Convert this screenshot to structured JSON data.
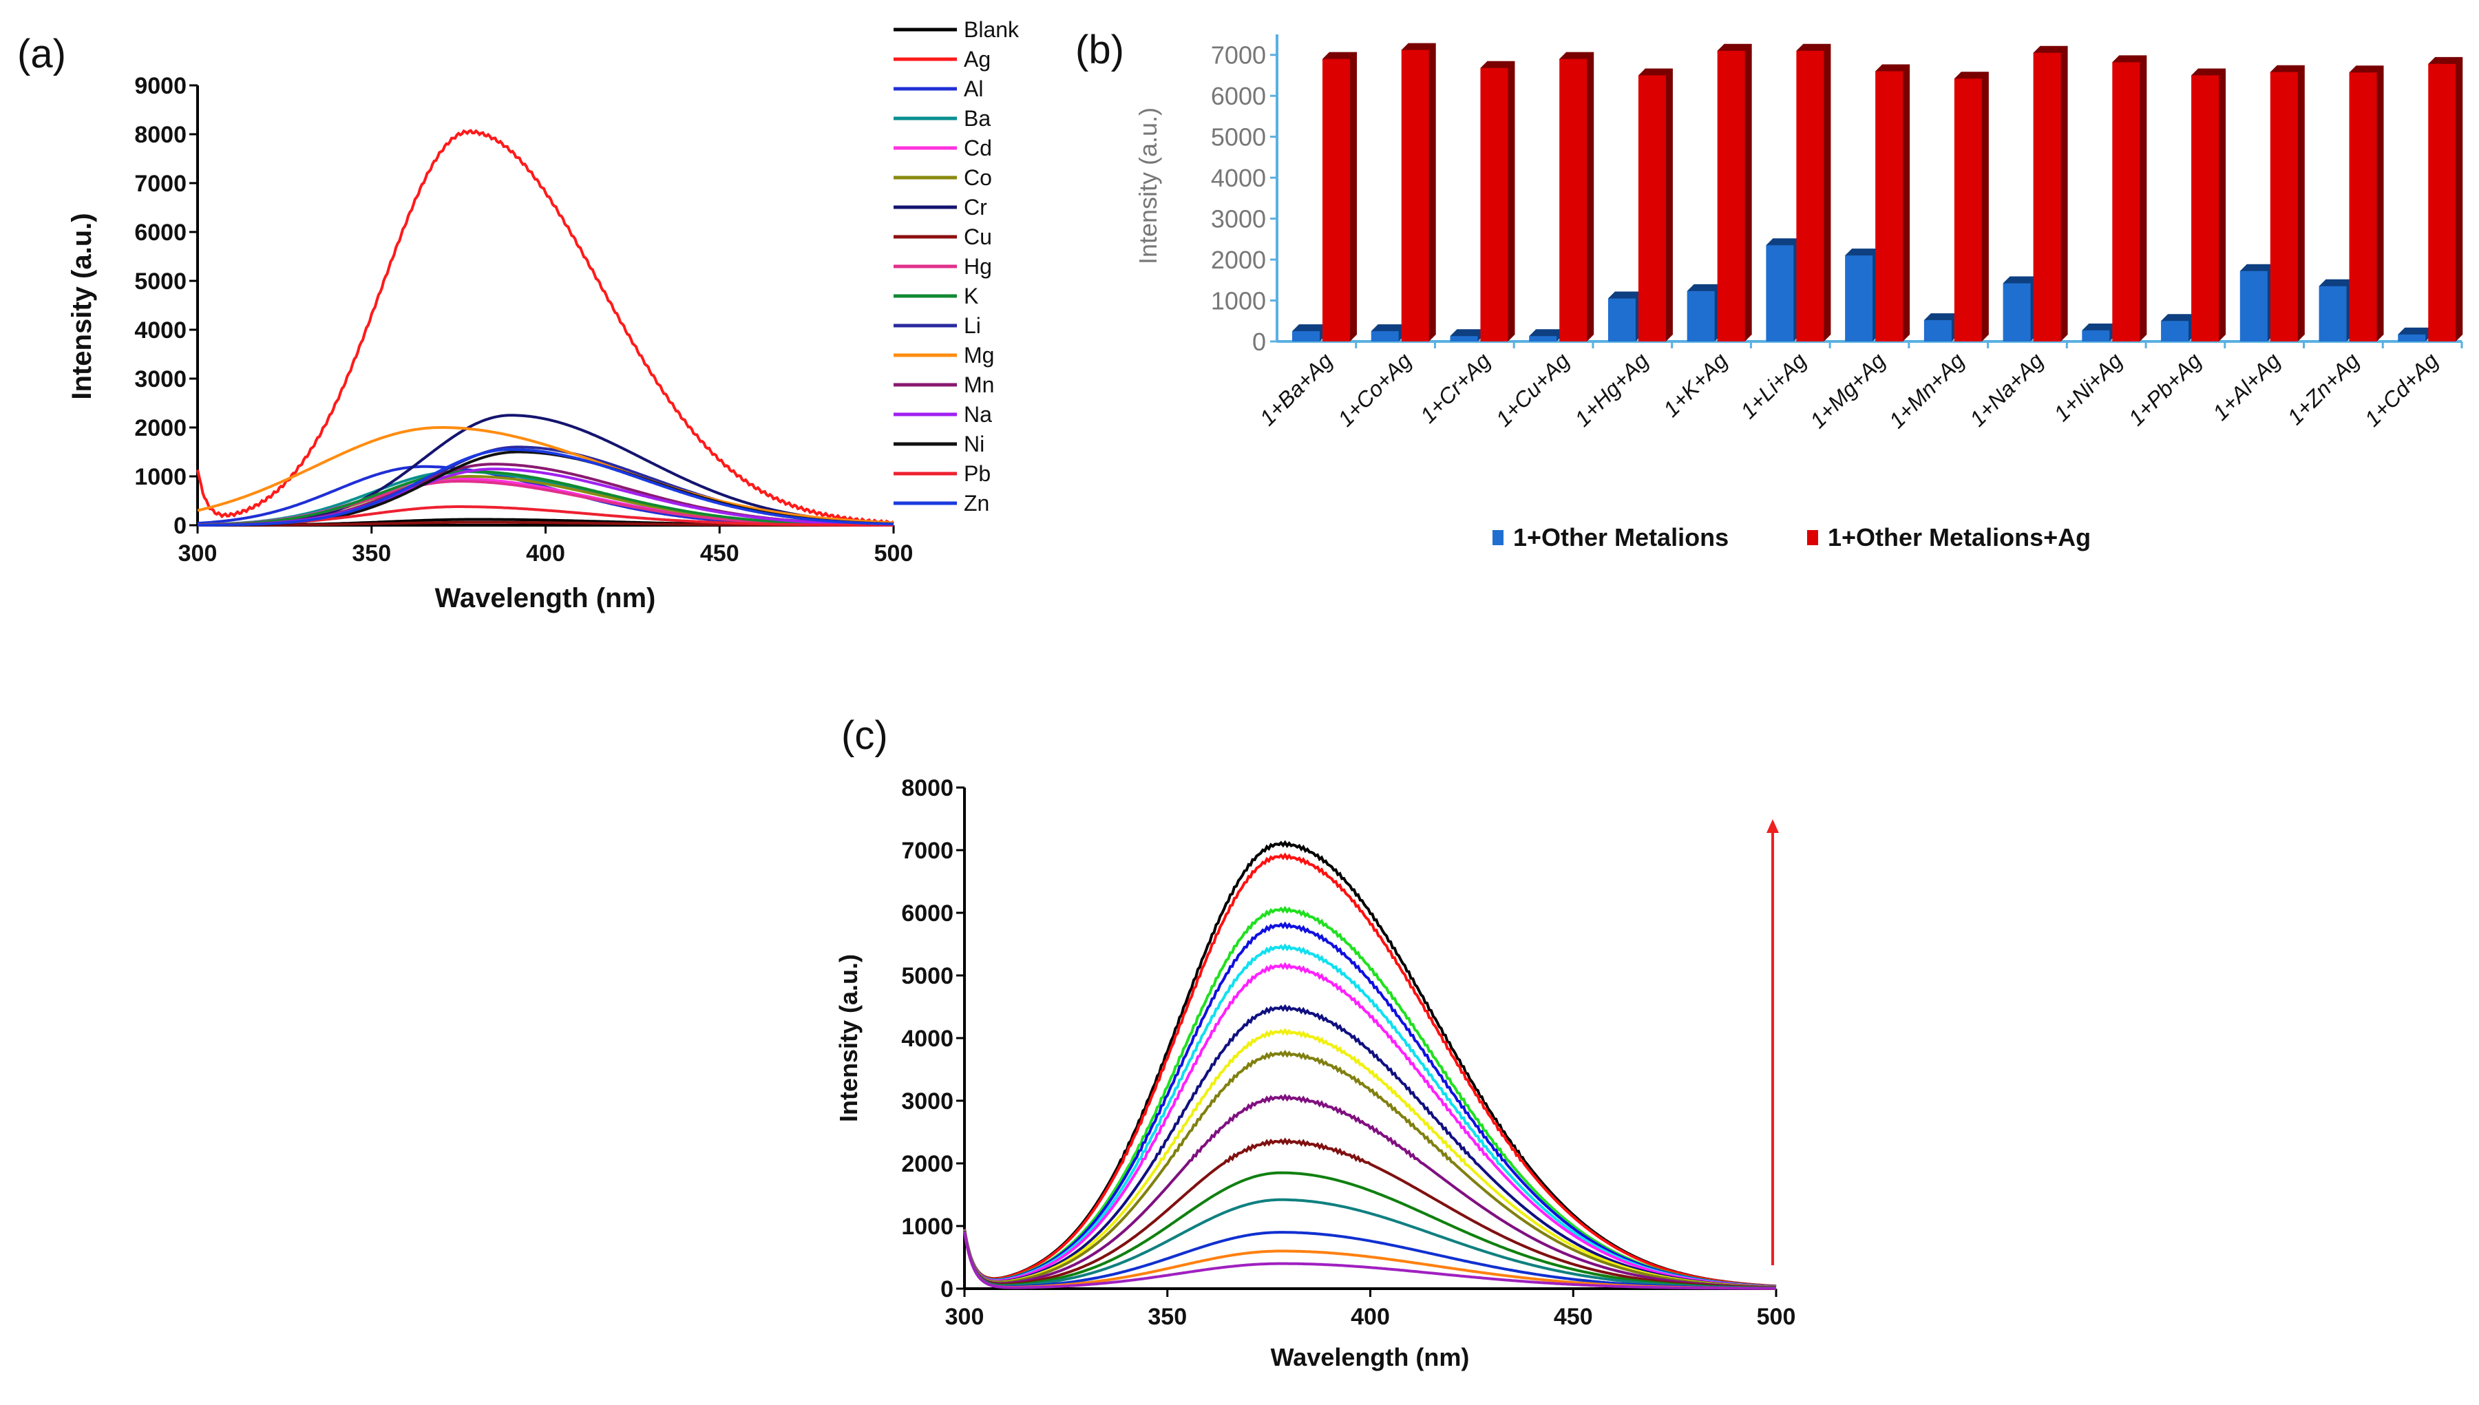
{
  "chart_data": [
    {
      "panel": "(a)",
      "type": "line",
      "xlabel": "Wavelength (nm)",
      "ylabel": "Intensity (a.u.)",
      "xlim": [
        300,
        500
      ],
      "ylim": [
        0,
        9000
      ],
      "xticks": [
        "300",
        "350",
        "400",
        "450",
        "500"
      ],
      "yticks": [
        "0",
        "1000",
        "2000",
        "3000",
        "4000",
        "5000",
        "6000",
        "7000",
        "8000",
        "9000"
      ],
      "legend_position": "right",
      "series": [
        {
          "name": "Blank",
          "color": "#000000",
          "peak_nm": 380,
          "peak_intensity": 120
        },
        {
          "name": "Ag",
          "color": "#ff1a1a",
          "peak_nm": 378,
          "peak_intensity": 8050
        },
        {
          "name": "Al",
          "color": "#1f2fd6",
          "peak_nm": 365,
          "peak_intensity": 1200
        },
        {
          "name": "Ba",
          "color": "#0a9090",
          "peak_nm": 375,
          "peak_intensity": 1100
        },
        {
          "name": "Cd",
          "color": "#ff33dd",
          "peak_nm": 375,
          "peak_intensity": 950
        },
        {
          "name": "Co",
          "color": "#8a8a10",
          "peak_nm": 378,
          "peak_intensity": 1000
        },
        {
          "name": "Cr",
          "color": "#141470",
          "peak_nm": 390,
          "peak_intensity": 2250
        },
        {
          "name": "Cu",
          "color": "#8b1010",
          "peak_nm": 380,
          "peak_intensity": 60
        },
        {
          "name": "Hg",
          "color": "#e0308a",
          "peak_nm": 375,
          "peak_intensity": 900
        },
        {
          "name": "K",
          "color": "#108a30",
          "peak_nm": 378,
          "peak_intensity": 1100
        },
        {
          "name": "Li",
          "color": "#2a2aa0",
          "peak_nm": 392,
          "peak_intensity": 1600
        },
        {
          "name": "Mg",
          "color": "#ff8c10",
          "peak_nm": 370,
          "peak_intensity": 2000
        },
        {
          "name": "Mn",
          "color": "#8a1a70",
          "peak_nm": 385,
          "peak_intensity": 1250
        },
        {
          "name": "Na",
          "color": "#a020f0",
          "peak_nm": 385,
          "peak_intensity": 1150
        },
        {
          "name": "Ni",
          "color": "#111111",
          "peak_nm": 392,
          "peak_intensity": 1500
        },
        {
          "name": "Pb",
          "color": "#ee2030",
          "peak_nm": 375,
          "peak_intensity": 380
        },
        {
          "name": "Zn",
          "color": "#1a3ae0",
          "peak_nm": 390,
          "peak_intensity": 1550
        }
      ]
    },
    {
      "panel": "(b)",
      "type": "bar",
      "ylabel": "Intensity (a.u.)",
      "ylim": [
        0,
        7500
      ],
      "yticks": [
        "0",
        "1000",
        "2000",
        "3000",
        "4000",
        "5000",
        "6000",
        "7000"
      ],
      "legend_position": "bottom",
      "categories": [
        "1+Ba+Ag",
        "1+Co+Ag",
        "1+Cr+Ag",
        "1+Cu+Ag",
        "1+Hg+Ag",
        "1+K+Ag",
        "1+Li+Ag",
        "1+Mg+Ag",
        "1+Mn+Ag",
        "1+Na+Ag",
        "1+Ni+Ag",
        "1+Pb+Ag",
        "1+Al+Ag",
        "1+Zn+Ag",
        "1+Cd+Ag"
      ],
      "series": [
        {
          "name": "1+Other Metalions",
          "color": "#1f6fd0",
          "values": [
            250,
            250,
            130,
            130,
            1050,
            1230,
            2350,
            2100,
            520,
            1420,
            270,
            500,
            1720,
            1350,
            170
          ]
        },
        {
          "name": "1+Other Metalions+Ag",
          "color": "#dd0000",
          "values": [
            6900,
            7120,
            6680,
            6900,
            6500,
            7100,
            7100,
            6600,
            6420,
            7050,
            6820,
            6500,
            6580,
            6570,
            6780
          ]
        }
      ]
    },
    {
      "panel": "(c)",
      "type": "line",
      "xlabel": "Wavelength (nm)",
      "ylabel": "Intensity (a.u.)",
      "xlim": [
        300,
        500
      ],
      "ylim": [
        0,
        8000
      ],
      "xticks": [
        "300",
        "350",
        "400",
        "450",
        "500"
      ],
      "yticks": [
        "0",
        "1000",
        "2000",
        "3000",
        "4000",
        "5000",
        "6000",
        "7000",
        "8000"
      ],
      "annotation": "upward red arrow indicating increasing Ag concentration",
      "arrow_color": "#ee2020",
      "peak_nm": 378,
      "series": [
        {
          "color": "#000000",
          "peak_intensity": 7100
        },
        {
          "color": "#ff1010",
          "peak_intensity": 6900
        },
        {
          "color": "#20e020",
          "peak_intensity": 6050
        },
        {
          "color": "#1010e0",
          "peak_intensity": 5800
        },
        {
          "color": "#10e0f0",
          "peak_intensity": 5450
        },
        {
          "color": "#ff20ff",
          "peak_intensity": 5150
        },
        {
          "color": "#101080",
          "peak_intensity": 4480
        },
        {
          "color": "#f0f010",
          "peak_intensity": 4100
        },
        {
          "color": "#808010",
          "peak_intensity": 3750
        },
        {
          "color": "#801080",
          "peak_intensity": 3050
        },
        {
          "color": "#801010",
          "peak_intensity": 2350
        },
        {
          "color": "#108010",
          "peak_intensity": 1850
        },
        {
          "color": "#108080",
          "peak_intensity": 1420
        },
        {
          "color": "#1030d0",
          "peak_intensity": 900
        },
        {
          "color": "#ff8010",
          "peak_intensity": 600
        },
        {
          "color": "#a020c0",
          "peak_intensity": 400
        }
      ]
    }
  ]
}
